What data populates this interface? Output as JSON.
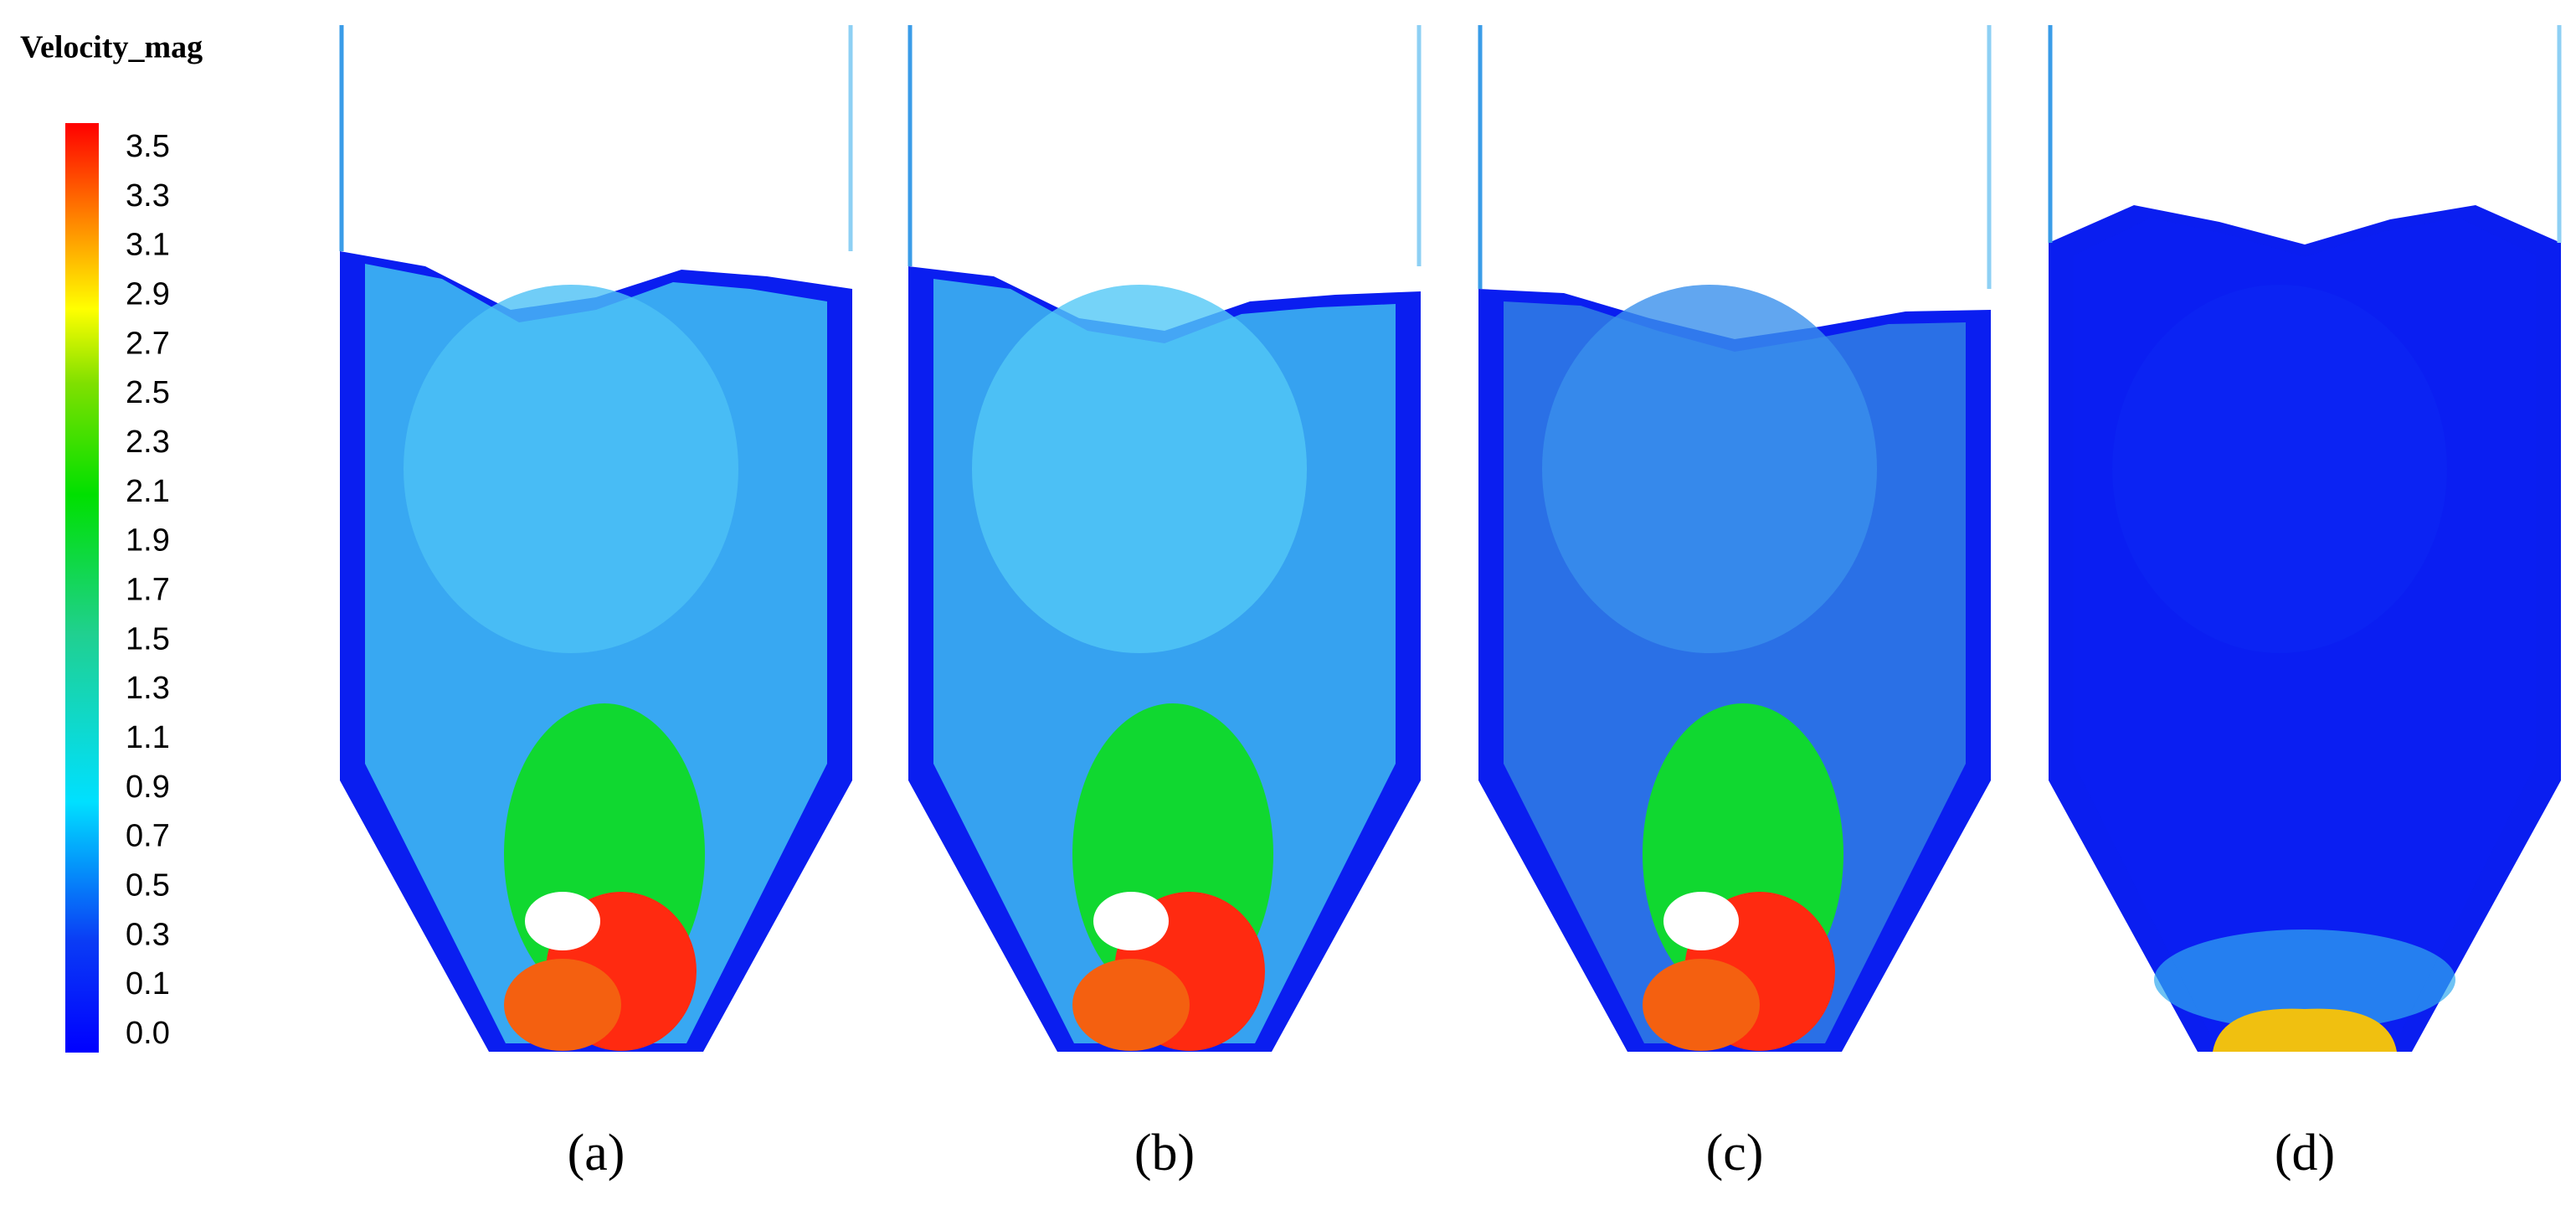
{
  "colorbar": {
    "title": "Velocity_mag",
    "labels": [
      "3.5",
      "3.3",
      "3.1",
      "2.9",
      "2.7",
      "2.5",
      "2.3",
      "2.1",
      "1.9",
      "1.7",
      "1.5",
      "1.3",
      "1.1",
      "0.9",
      "0.7",
      "0.5",
      "0.3",
      "0.1",
      "0.0"
    ]
  },
  "panels": [
    {
      "label": "(a)"
    },
    {
      "label": "(b)"
    },
    {
      "label": "(c)"
    },
    {
      "label": "(d)"
    }
  ]
}
